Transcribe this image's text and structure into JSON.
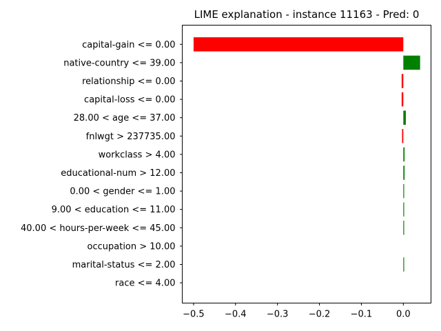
{
  "chart_data": {
    "type": "bar",
    "orientation": "horizontal",
    "title": "LIME explanation - instance 11163 - Pred: 0",
    "xlabel": "",
    "ylabel": "",
    "xlim": [
      -0.527,
      0.066
    ],
    "xticks": [
      -0.5,
      -0.4,
      -0.3,
      -0.2,
      -0.1,
      0.0
    ],
    "xtick_labels": [
      "−0.5",
      "−0.4",
      "−0.3",
      "−0.2",
      "−0.1",
      "0.0"
    ],
    "grid": false,
    "categories": [
      "capital-gain <= 0.00",
      "native-country <= 39.00",
      "relationship <= 0.00",
      "capital-loss <= 0.00",
      "28.00 < age <= 37.00",
      "fnlwgt > 237735.00",
      "workclass > 4.00",
      "educational-num > 12.00",
      "0.00 < gender <= 1.00",
      "9.00 < education <= 11.00",
      "40.00 < hours-per-week <= 45.00",
      "occupation > 10.00",
      "marital-status <= 2.00",
      "race <= 4.00"
    ],
    "values": [
      -0.5,
      0.04,
      -0.004,
      -0.004,
      0.006,
      -0.003,
      0.003,
      0.003,
      0.001,
      0.001,
      0.001,
      0.0,
      0.001,
      0.0
    ],
    "colors": {
      "positive": "#008000",
      "negative": "#ff0000"
    }
  }
}
